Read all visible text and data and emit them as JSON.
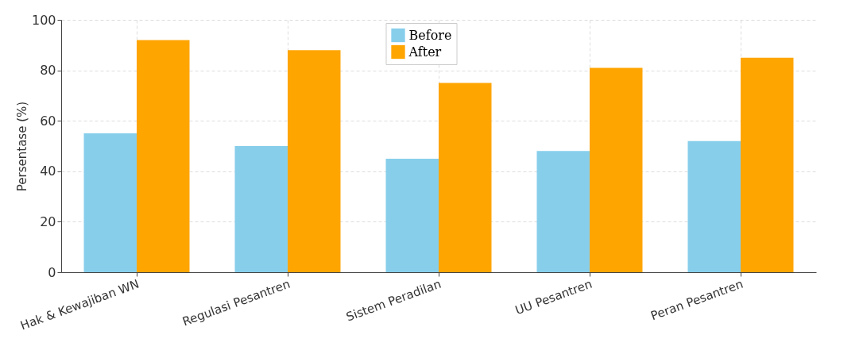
{
  "chart_data": {
    "type": "bar",
    "ylabel": "Persentase (%)",
    "categories": [
      "Hak & Kewajiban WN",
      "Regulasi Pesantren",
      "Sistem Peradilan",
      "UU Pesantren",
      "Peran Pesantren"
    ],
    "series": [
      {
        "name": "Before",
        "color": "#87ceeb",
        "values": [
          55,
          50,
          45,
          48,
          52
        ]
      },
      {
        "name": "After",
        "color": "#ffa500",
        "values": [
          92,
          88,
          75,
          81,
          85
        ]
      }
    ],
    "ylim": [
      0,
      100
    ],
    "yticks": [
      0,
      20,
      40,
      60,
      80,
      100
    ],
    "grid": true,
    "legend": "top"
  }
}
